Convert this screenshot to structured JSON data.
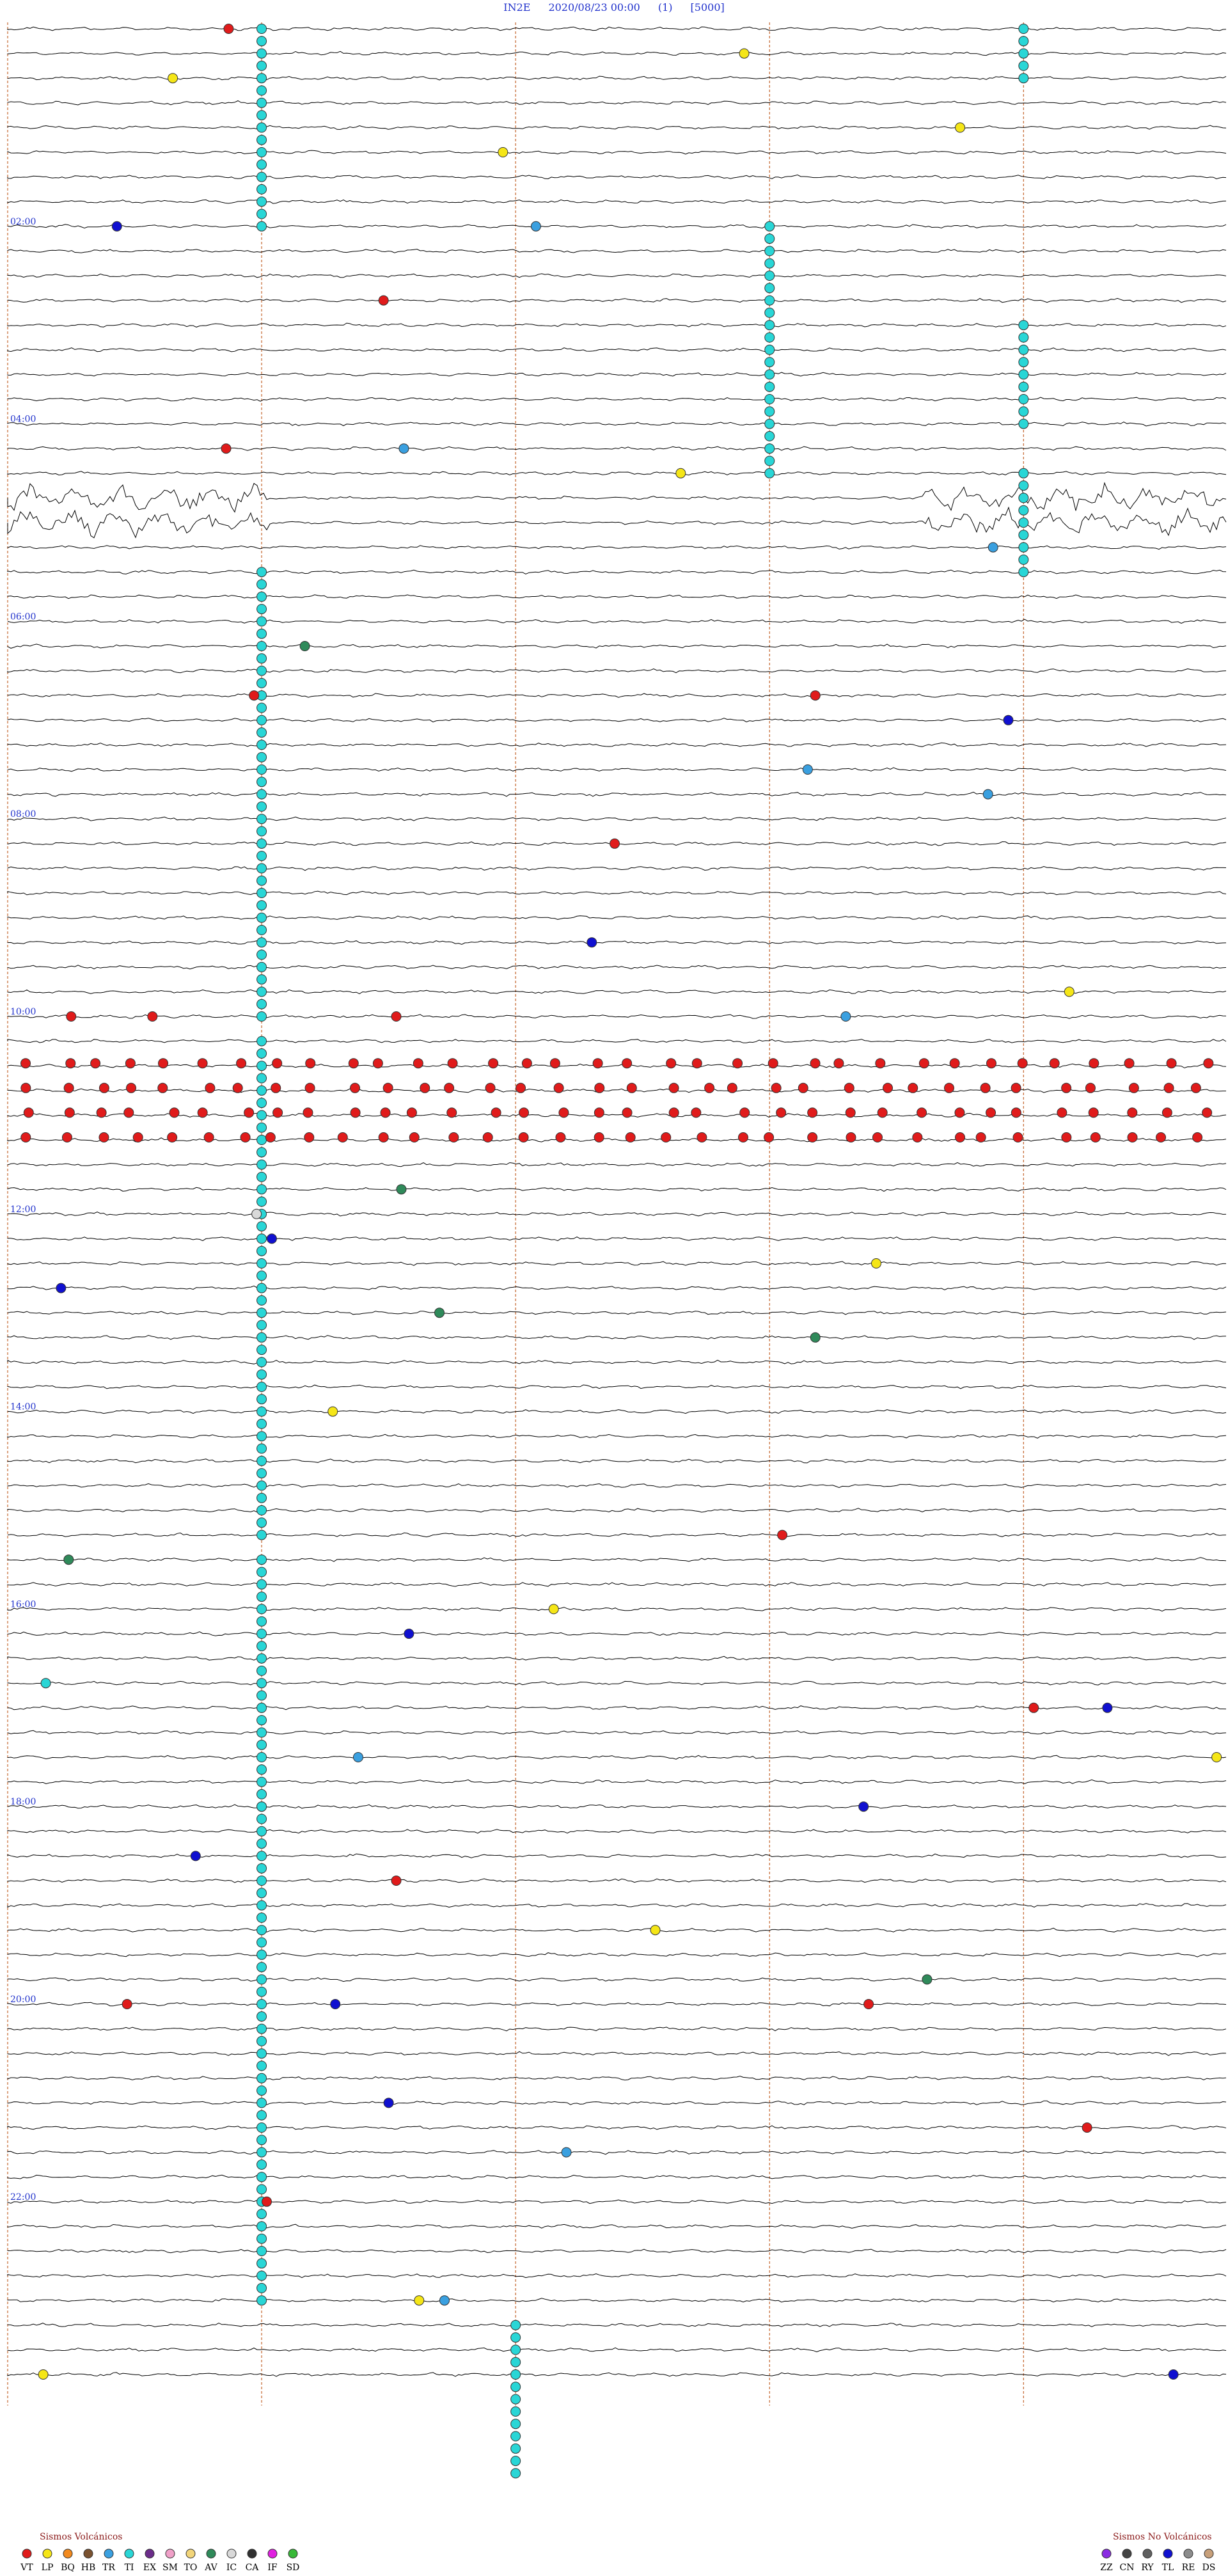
{
  "header": {
    "station": "IN2E",
    "datetime": "2020/08/23 00:00",
    "mode": "(1)",
    "gain": "[5000]"
  },
  "colors": {
    "VT": "#e01b1b",
    "LP": "#f5e617",
    "BQ": "#f28a1e",
    "HB": "#7a5230",
    "TR": "#3aa0e0",
    "TI": "#29d6d6",
    "EX": "#6b2c8a",
    "SM": "#f0a0c8",
    "TO": "#f2d57a",
    "AV": "#2f8a5a",
    "IC": "#d9d9d9",
    "CA": "#303030",
    "IF": "#e020e0",
    "SD": "#38b838",
    "ZZ": "#8a2be2",
    "CN": "#444444",
    "RY": "#606060",
    "TL": "#1010d0",
    "RE": "#8c8c8c",
    "DS": "#c8a07a",
    "trace": "#000000",
    "time_label": "#2233cc",
    "hour_line": "#c8703c"
  },
  "chart_data": {
    "type": "seismogram_helicorder",
    "traces_per_hour": 4,
    "rows": 96,
    "time_labels": [
      "02:00",
      "04:00",
      "06:00",
      "08:00",
      "10:00",
      "12:00",
      "14:00",
      "16:00",
      "18:00",
      "20:00",
      "22:00"
    ],
    "label_rows": [
      8,
      16,
      24,
      32,
      40,
      48,
      56,
      64,
      72,
      80,
      88
    ],
    "vertical_markers_min": [
      0,
      10,
      20,
      30,
      40
    ],
    "ti_clusters": [
      {
        "minute": 10,
        "rows": [
          0,
          8
        ],
        "note": "TI"
      },
      {
        "minute": 10,
        "rows": [
          22,
          40
        ]
      },
      {
        "minute": 10,
        "rows": [
          41,
          61
        ]
      },
      {
        "minute": 10,
        "rows": [
          62,
          72
        ]
      },
      {
        "minute": 10,
        "rows": [
          72,
          92
        ]
      },
      {
        "minute": 30,
        "rows": [
          8,
          18
        ]
      },
      {
        "minute": 40,
        "rows": [
          0,
          2
        ]
      },
      {
        "minute": 40,
        "rows": [
          12,
          16
        ]
      },
      {
        "minute": 40,
        "rows": [
          18,
          22
        ]
      },
      {
        "minute": 20,
        "rows": [
          93,
          99
        ]
      }
    ],
    "vt_swarm_rows": [
      42,
      43,
      44,
      45
    ],
    "noisy_rows": [
      19,
      20
    ],
    "events_sample": [
      {
        "row": 0,
        "minute": 8.7,
        "type": "VT"
      },
      {
        "row": 1,
        "minute": 29,
        "type": "LP"
      },
      {
        "row": 2,
        "minute": 6.5,
        "type": "LP"
      },
      {
        "row": 4,
        "minute": 37.5,
        "type": "LP"
      },
      {
        "row": 5,
        "minute": 19.5,
        "type": "LP"
      },
      {
        "row": 8,
        "minute": 4.3,
        "type": "TL"
      },
      {
        "row": 8,
        "minute": 20.8,
        "type": "TR"
      },
      {
        "row": 11,
        "minute": 14.8,
        "type": "VT"
      },
      {
        "row": 17,
        "minute": 15.6,
        "type": "TR"
      },
      {
        "row": 17,
        "minute": 8.6,
        "type": "VT"
      },
      {
        "row": 18,
        "minute": 26.5,
        "type": "LP"
      },
      {
        "row": 21,
        "minute": 38.8,
        "type": "TR"
      },
      {
        "row": 25,
        "minute": 11.7,
        "type": "AV"
      },
      {
        "row": 27,
        "minute": 9.7,
        "type": "VT"
      },
      {
        "row": 27,
        "minute": 31.8,
        "type": "VT"
      },
      {
        "row": 28,
        "minute": 39.4,
        "type": "TL"
      },
      {
        "row": 30,
        "minute": 31.5,
        "type": "TR"
      },
      {
        "row": 31,
        "minute": 38.6,
        "type": "TR"
      },
      {
        "row": 33,
        "minute": 23.9,
        "type": "VT"
      },
      {
        "row": 37,
        "minute": 23,
        "type": "TL"
      },
      {
        "row": 39,
        "minute": 41.8,
        "type": "LP"
      },
      {
        "row": 40,
        "minute": 2.5,
        "type": "VT"
      },
      {
        "row": 40,
        "minute": 5.7,
        "type": "VT"
      },
      {
        "row": 40,
        "minute": 15.3,
        "type": "VT"
      },
      {
        "row": 40,
        "minute": 33,
        "type": "TR"
      },
      {
        "row": 47,
        "minute": 15.5,
        "type": "AV"
      },
      {
        "row": 48,
        "minute": 9.8,
        "type": "IC"
      },
      {
        "row": 49,
        "minute": 10.4,
        "type": "TL"
      },
      {
        "row": 50,
        "minute": 34.2,
        "type": "LP"
      },
      {
        "row": 51,
        "minute": 2.1,
        "type": "TL"
      },
      {
        "row": 52,
        "minute": 17,
        "type": "AV"
      },
      {
        "row": 53,
        "minute": 31.8,
        "type": "AV"
      },
      {
        "row": 56,
        "minute": 12.8,
        "type": "LP"
      },
      {
        "row": 61,
        "minute": 30.5,
        "type": "VT"
      },
      {
        "row": 62,
        "minute": 2.4,
        "type": "AV"
      },
      {
        "row": 64,
        "minute": 21.5,
        "type": "LP"
      },
      {
        "row": 65,
        "minute": 15.8,
        "type": "TL"
      },
      {
        "row": 67,
        "minute": 1.5,
        "type": "TI"
      },
      {
        "row": 68,
        "minute": 40.4,
        "type": "VT"
      },
      {
        "row": 68,
        "minute": 43.3,
        "type": "TL"
      },
      {
        "row": 70,
        "minute": 13.8,
        "type": "TR"
      },
      {
        "row": 70,
        "minute": 47.6,
        "type": "LP"
      },
      {
        "row": 72,
        "minute": 33.7,
        "type": "TL"
      },
      {
        "row": 74,
        "minute": 7.4,
        "type": "TL"
      },
      {
        "row": 75,
        "minute": 15.3,
        "type": "VT"
      },
      {
        "row": 77,
        "minute": 25.5,
        "type": "LP"
      },
      {
        "row": 79,
        "minute": 36.2,
        "type": "AV"
      },
      {
        "row": 80,
        "minute": 4.7,
        "type": "VT"
      },
      {
        "row": 80,
        "minute": 12.9,
        "type": "TL"
      },
      {
        "row": 80,
        "minute": 33.9,
        "type": "VT"
      },
      {
        "row": 84,
        "minute": 15,
        "type": "TL"
      },
      {
        "row": 85,
        "minute": 42.5,
        "type": "VT"
      },
      {
        "row": 86,
        "minute": 22,
        "type": "TR"
      },
      {
        "row": 88,
        "minute": 10.2,
        "type": "VT"
      },
      {
        "row": 92,
        "minute": 16.2,
        "type": "LP"
      },
      {
        "row": 92,
        "minute": 17.2,
        "type": "TR"
      },
      {
        "row": 95,
        "minute": 1.4,
        "type": "LP"
      },
      {
        "row": 95,
        "minute": 45.9,
        "type": "TL"
      }
    ]
  },
  "legend": {
    "volcanic_title": "Sismos Volcánicos",
    "volcanic": [
      "VT",
      "LP",
      "BQ",
      "HB",
      "TR",
      "TI",
      "EX",
      "SM",
      "TO",
      "AV",
      "IC",
      "CA",
      "IF",
      "SD"
    ],
    "non_volcanic_title": "Sismos No Volcánicos",
    "non_volcanic": [
      "ZZ",
      "CN",
      "RY",
      "TL",
      "RE",
      "DS"
    ]
  }
}
